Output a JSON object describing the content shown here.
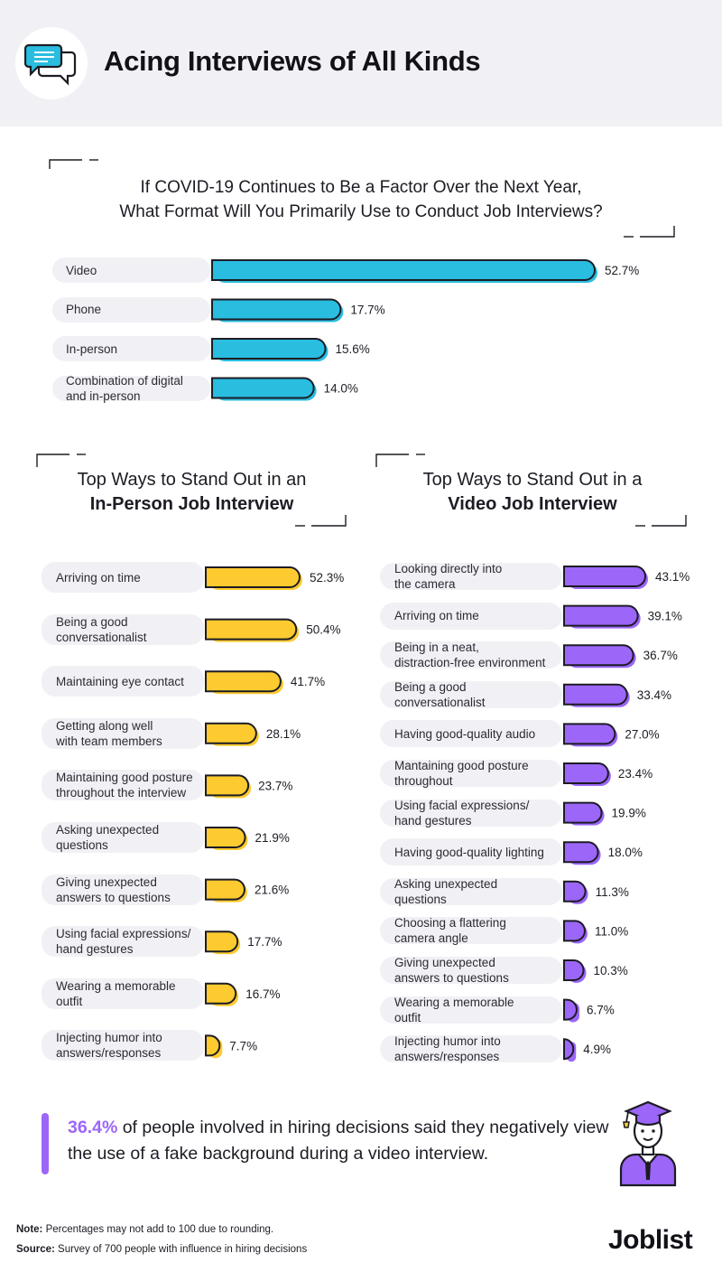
{
  "header": {
    "title": "Acing Interviews of All Kinds",
    "icon": "chat-bubbles-icon"
  },
  "colors": {
    "blue": "#29bde0",
    "yellow": "#fdcb2f",
    "purple": "#9c66f8",
    "ink": "#1c1c24",
    "label_bg": "#f1f1f5"
  },
  "chart_data": [
    {
      "type": "bar",
      "title": "If COVID-19 Continues to Be a Factor Over the Next Year,\nWhat Format Will You Primarily Use to Conduct Job Interviews?",
      "unit": "%",
      "categories": [
        "Video",
        "Phone",
        "In-person",
        "Combination of digital\nand in-person"
      ],
      "values": [
        52.7,
        17.7,
        15.6,
        14.0
      ],
      "value_labels": [
        "52.7%",
        "17.7%",
        "15.6%",
        "14.0%"
      ],
      "color": "#29bde0"
    },
    {
      "type": "bar",
      "title": "Top Ways to Stand Out in an",
      "title_bold": "In-Person Job Interview",
      "unit": "%",
      "categories": [
        "Arriving on time",
        "Being a good\nconversationalist",
        "Maintaining eye contact",
        "Getting along well\nwith team members",
        "Maintaining good posture\nthroughout the interview",
        "Asking unexpected\nquestions",
        "Giving unexpected\nanswers to questions",
        "Using facial expressions/\nhand gestures",
        "Wearing a memorable\noutfit",
        "Injecting humor into\nanswers/responses"
      ],
      "values": [
        52.3,
        50.4,
        41.7,
        28.1,
        23.7,
        21.9,
        21.6,
        17.7,
        16.7,
        7.7
      ],
      "value_labels": [
        "52.3%",
        "50.4%",
        "41.7%",
        "28.1%",
        "23.7%",
        "21.9%",
        "21.6%",
        "17.7%",
        "16.7%",
        "7.7%"
      ],
      "color": "#fdcb2f"
    },
    {
      "type": "bar",
      "title": "Top Ways to Stand Out in a",
      "title_bold": "Video Job Interview",
      "unit": "%",
      "categories": [
        "Looking directly into\nthe camera",
        "Arriving on time",
        "Being in a neat,\ndistraction-free environment",
        "Being a good\nconversationalist",
        "Having good-quality audio",
        "Mantaining good posture\nthroughout",
        "Using facial expressions/\nhand gestures",
        "Having good-quality lighting",
        "Asking unexpected\nquestions",
        "Choosing a flattering\ncamera angle",
        "Giving unexpected\nanswers to questions",
        "Wearing a memorable\noutfit",
        "Injecting humor into\nanswers/responses"
      ],
      "values": [
        43.1,
        39.1,
        36.7,
        33.4,
        27.0,
        23.4,
        19.9,
        18.0,
        11.3,
        11.0,
        10.3,
        6.7,
        4.9
      ],
      "value_labels": [
        "43.1%",
        "39.1%",
        "36.7%",
        "33.4%",
        "27.0%",
        "23.4%",
        "19.9%",
        "18.0%",
        "11.3%",
        "11.0%",
        "10.3%",
        "6.7%",
        "4.9%"
      ],
      "color": "#9c66f8"
    }
  ],
  "callout": {
    "highlight": "36.4%",
    "text": " of people involved in hiring decisions said they negatively view the use of a fake background during a video interview.",
    "icon": "graduate-avatar-icon"
  },
  "footer": {
    "note_label": "Note:",
    "note": " Percentages may not add to 100 due to rounding.",
    "source_label": "Source:",
    "source": " Survey of 700 people with influence in hiring decisions",
    "brand": "Joblist"
  }
}
